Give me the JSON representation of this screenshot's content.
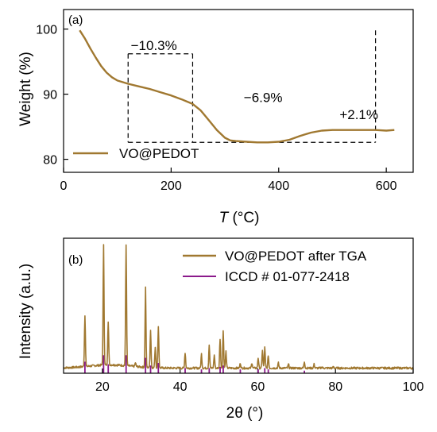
{
  "colors": {
    "curve": "#A07830",
    "reference": "#8B1A8B",
    "axis": "#000000",
    "background": "#FFFFFF"
  },
  "chart_data": [
    {
      "type": "line",
      "panel_label": "(a)",
      "xlabel_italic": "T",
      "xlabel_unit": " (°C)",
      "ylabel": "Weight (%)",
      "xlim": [
        0,
        650
      ],
      "ylim": [
        78,
        103
      ],
      "xticks": [
        0,
        200,
        400,
        600
      ],
      "yticks": [
        80,
        90,
        100
      ],
      "grid": false,
      "legend_position": "bottom-left",
      "series": [
        {
          "name": "VO@PEDOT",
          "x": [
            30,
            40,
            50,
            60,
            70,
            80,
            90,
            100,
            120,
            140,
            160,
            180,
            200,
            220,
            240,
            255,
            270,
            285,
            300,
            310,
            320,
            340,
            360,
            380,
            400,
            420,
            440,
            460,
            480,
            500,
            520,
            540,
            560,
            580,
            600,
            615
          ],
          "y": [
            99.8,
            98.5,
            97.0,
            95.6,
            94.3,
            93.3,
            92.6,
            92.1,
            91.6,
            91.2,
            90.8,
            90.3,
            89.8,
            89.2,
            88.5,
            87.5,
            86.0,
            84.5,
            83.3,
            82.9,
            82.8,
            82.7,
            82.6,
            82.6,
            82.7,
            83.0,
            83.6,
            84.1,
            84.4,
            84.5,
            84.5,
            84.5,
            84.5,
            84.5,
            84.4,
            84.5
          ]
        }
      ],
      "annotations": [
        "−10.3%",
        "−6.9%",
        "+2.1%"
      ],
      "annotation_x": [
        125,
        335,
        585
      ],
      "annotation_y": [
        96.8,
        88.8,
        86.2
      ],
      "guide_x": [
        120,
        240,
        580
      ],
      "guide_top": [
        96.2,
        96.2,
        99.8
      ],
      "guide_bottom": 82.6
    },
    {
      "type": "line",
      "panel_label": "(b)",
      "xlabel": "2θ (°)",
      "ylabel": "Intensity (a.u.)",
      "xlim": [
        10,
        100
      ],
      "ylim": [
        0,
        100
      ],
      "xticks": [
        20,
        40,
        60,
        80,
        100
      ],
      "grid": false,
      "legend_position": "top-right",
      "baseline": 4,
      "noise_seed": 7,
      "series": [
        {
          "name": "VO@PEDOT after TGA",
          "peaks_x": [
            15.5,
            20.3,
            21.5,
            26.1,
            28.5,
            31.1,
            32.4,
            33.6,
            34.4,
            41.3,
            45.5,
            47.5,
            48.8,
            50.3,
            51.1,
            51.8,
            55.5,
            58.5,
            60.1,
            61.2,
            61.8,
            62.7,
            65.3,
            67.9,
            72.0,
            74.5,
            76.5,
            79.5,
            83.5,
            87.0
          ],
          "peaks_y": [
            44,
            98,
            38,
            98,
            7,
            66,
            33,
            20,
            36,
            16,
            15,
            22,
            14,
            27,
            33,
            17,
            8,
            8,
            12,
            18,
            20,
            14,
            8,
            7,
            9,
            7,
            5,
            5,
            4,
            4
          ]
        },
        {
          "name": "ICCD # 01-077-2418",
          "x": [
            15.5,
            20.3,
            21.5,
            26.1,
            31.1,
            32.4,
            34.4,
            41.3,
            45.5,
            47.5,
            50.3,
            51.1,
            55.5,
            60.1,
            61.8,
            62.7,
            72.0
          ],
          "y": [
            9,
            14,
            7,
            14,
            12,
            6,
            8,
            4,
            3,
            4,
            5,
            6,
            3,
            3,
            4,
            3,
            2
          ]
        }
      ]
    }
  ]
}
